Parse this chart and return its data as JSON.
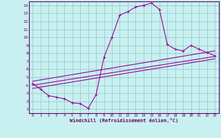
{
  "xlabel": "Windchill (Refroidissement éolien,°C)",
  "bg_color": "#c8f0f0",
  "line_color": "#990099",
  "grid_color": "#99cccc",
  "xlim": [
    -0.5,
    23.5
  ],
  "ylim": [
    0.5,
    14.5
  ],
  "xticks": [
    0,
    1,
    2,
    3,
    4,
    5,
    6,
    7,
    8,
    9,
    10,
    11,
    12,
    13,
    14,
    15,
    16,
    17,
    18,
    19,
    20,
    21,
    22,
    23
  ],
  "yticks": [
    1,
    2,
    3,
    4,
    5,
    6,
    7,
    8,
    9,
    10,
    11,
    12,
    13,
    14
  ],
  "curve1_x": [
    0,
    1,
    2,
    3,
    4,
    5,
    6,
    7,
    8,
    9,
    10,
    11,
    12,
    13,
    14,
    15,
    16,
    17,
    18,
    19,
    20,
    21,
    22,
    23
  ],
  "curve1_y": [
    4.2,
    3.5,
    2.7,
    2.5,
    2.3,
    1.8,
    1.7,
    1.1,
    2.8,
    7.5,
    10.0,
    12.8,
    13.2,
    13.8,
    14.0,
    14.3,
    13.5,
    9.1,
    8.5,
    8.3,
    9.0,
    8.5,
    8.1,
    7.7
  ],
  "curve2_x": [
    0,
    23
  ],
  "curve2_y": [
    4.5,
    8.3
  ],
  "curve3_x": [
    0,
    23
  ],
  "curve3_y": [
    4.0,
    7.6
  ],
  "curve4_x": [
    0,
    23
  ],
  "curve4_y": [
    3.6,
    7.3
  ]
}
